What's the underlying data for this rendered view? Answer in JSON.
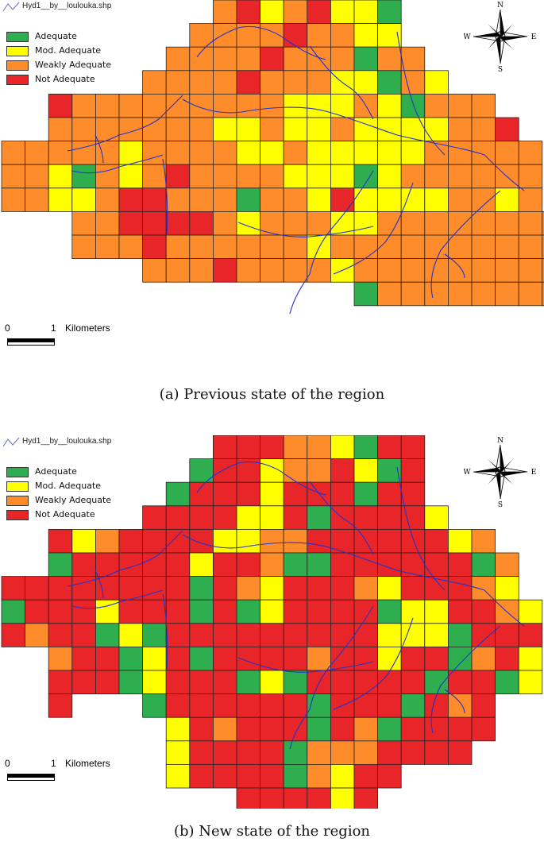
{
  "layer_name": "Hyd1__by__loulouka.shp",
  "legend": [
    {
      "label": "Adequate",
      "color": "#2EAE4F",
      "code": "A"
    },
    {
      "label": "Mod. Adequate",
      "color": "#FFFF00",
      "code": "M"
    },
    {
      "label": "Weakly Adequate",
      "color": "#FF8C2A",
      "code": "W"
    },
    {
      "label": "Not Adequate",
      "color": "#E8262A",
      "code": "N"
    }
  ],
  "compass": {
    "n": "N",
    "s": "S",
    "e": "E",
    "w": "W"
  },
  "scale": {
    "zero": "0",
    "one": "1",
    "unit": "Kilometers"
  },
  "maps": [
    {
      "caption": "(a) Previous state of the region",
      "grid_rows": [
        "_________WNMWNMMA_____",
        "________WWWWNWWMM_____",
        "_______WWWWNWWWAWW____",
        "______WWWWNWWWMMAWM___",
        "__NWWWWWWWWWMMMWMAWWW_",
        "__WWWWWWWMMWMMWMMMMWWN_",
        "WWWWWMWWWWMMWMMMMMWWWWW",
        "WWMAWMWNWWWWMMMAMWWWWWW",
        "WWMMWNNWWWAWWMNMMMMWWMW",
        "___WWNNNNWMWWWMMWWWWWWWW",
        "___WWWNWWWWWWMWWWWWWWWWWW",
        "______WWWNWWWWMWWWWWWWWWW",
        "_______________AWWWWWWWW",
        "_____________________",
        "_____________________"
      ]
    },
    {
      "caption": "(b) New state of the region",
      "grid_rows": [
        "_________NNNWWMANN____",
        "________ANNMWWNMAN____",
        "_______ANNNMNNNANN____",
        "______NNNNMMNANNNNM___",
        "__NMWNNNNMMWWNNNNNNMW_",
        "__ANNNNNMNNWAANNNNNNAW_",
        "NNNNNNNNANWMNNNWMNNNWM_",
        "ANNNMNNNANAMNNNNAMMNNWM",
        "NWNNAMANNNNNNNNNMMMANNN",
        "__WNNAMNANNNNWNNMNNAWNM",
        "__NNNAMNNNAMANNNNNANNAM",
        "__N___ANNNNNNANNNANWN_",
        "_______MNWNNNANWANNNN_",
        "_______MNNNNAWWWNNNN__",
        "_______MNNNNAWMNN_____",
        "__________NNNNMN______"
      ]
    }
  ]
}
